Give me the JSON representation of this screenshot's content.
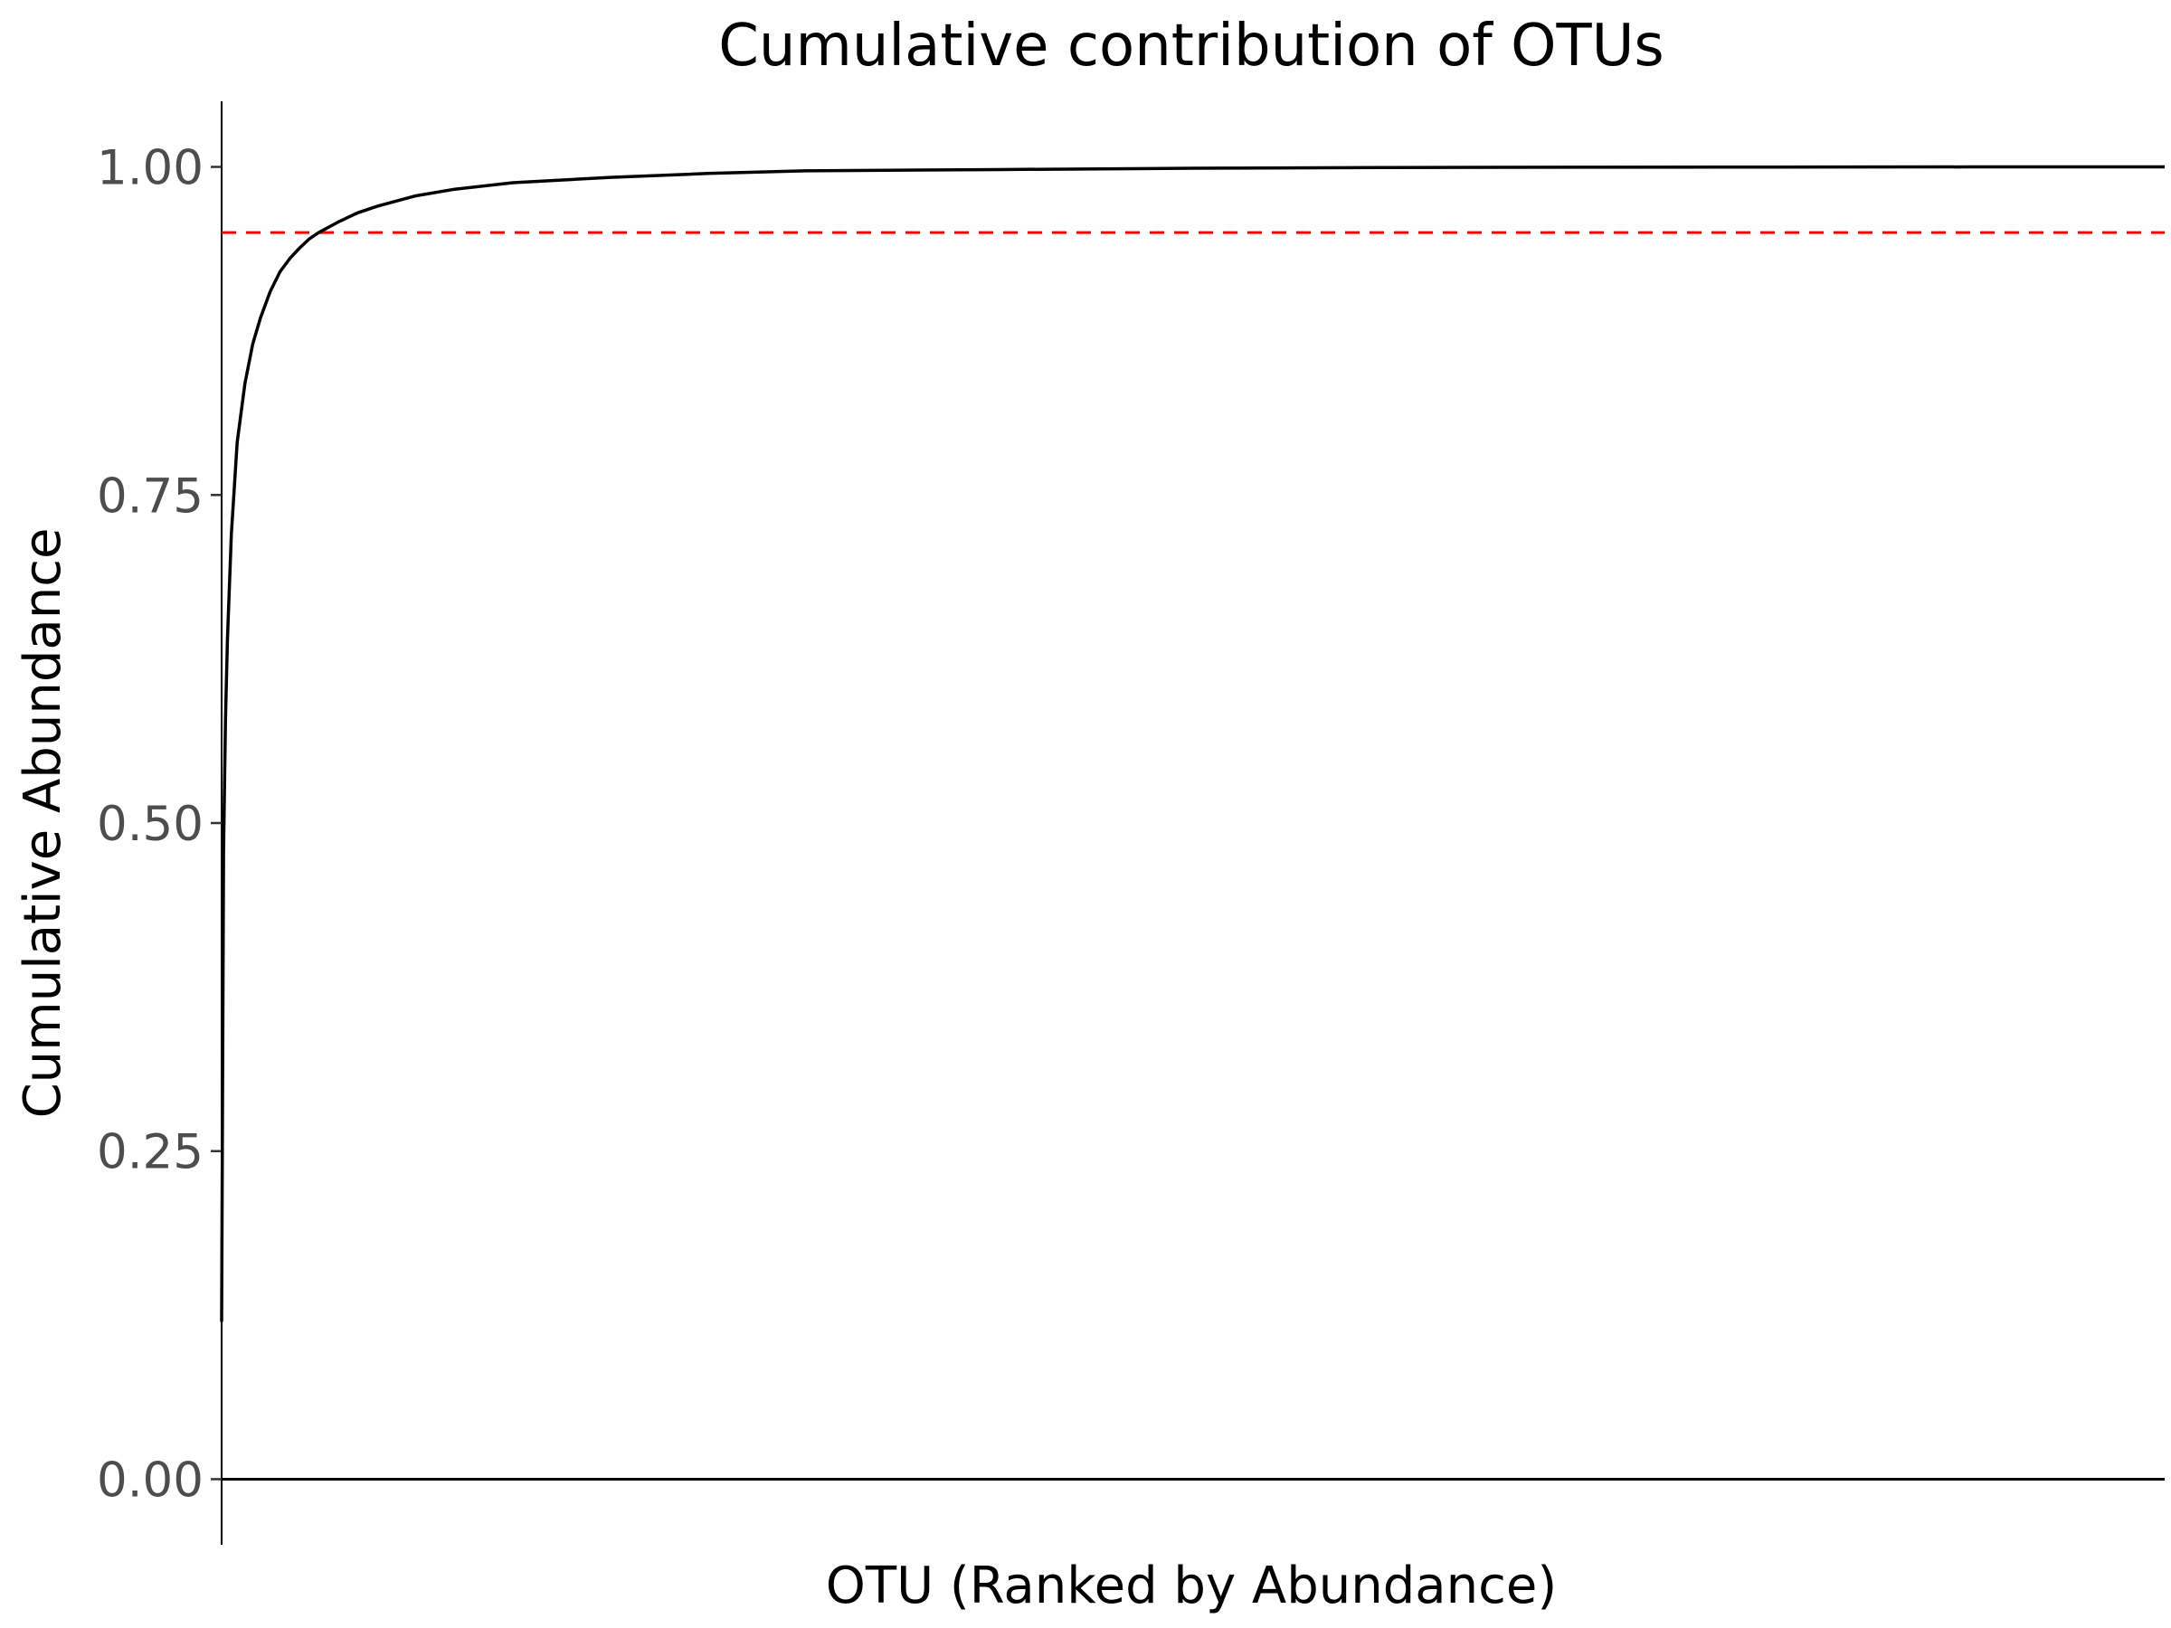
{
  "chart_data": {
    "type": "line",
    "title": "Cumulative contribution of OTUs",
    "xlabel": "OTU (Ranked by Abundance)",
    "ylabel": "Cumulative Abundance",
    "ylim": [
      -0.05,
      1.05
    ],
    "yticks": [
      "0.00",
      "0.25",
      "0.50",
      "0.75",
      "1.00"
    ],
    "ytick_values": [
      0,
      0.25,
      0.5,
      0.75,
      1.0
    ],
    "xlim": [
      0,
      1000
    ],
    "x_ticks_shown": false,
    "grid": false,
    "legend": "none",
    "series": [
      {
        "x": [
          0,
          1,
          2,
          3,
          5,
          8,
          12,
          16,
          20,
          25,
          30,
          35,
          40,
          45,
          50,
          60,
          70,
          80,
          100,
          120,
          150,
          200,
          250,
          300,
          400,
          500,
          600,
          700,
          800,
          900,
          1000
        ],
        "values": [
          0.12,
          0.48,
          0.58,
          0.64,
          0.72,
          0.79,
          0.835,
          0.865,
          0.885,
          0.905,
          0.92,
          0.93,
          0.938,
          0.945,
          0.95,
          0.958,
          0.965,
          0.97,
          0.978,
          0.983,
          0.988,
          0.992,
          0.995,
          0.997,
          0.998,
          0.999,
          0.9995,
          0.9998,
          0.9999,
          1.0,
          1.0
        ],
        "color": "#000000"
      }
    ],
    "reference_lines": [
      {
        "orientation": "horizontal",
        "y": 0.95,
        "color": "#ff0000",
        "style": "dashed"
      },
      {
        "orientation": "horizontal",
        "y": 0,
        "color": "#000000",
        "style": "solid"
      }
    ]
  }
}
